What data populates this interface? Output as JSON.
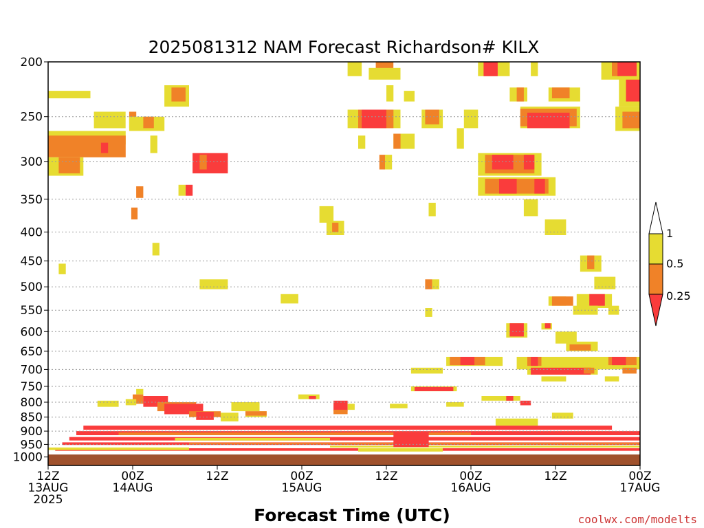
{
  "chart_data": {
    "type": "heatmap",
    "title": "2025081312 NAM Forecast Richardson# KILX",
    "xlabel": "Forecast Time (UTC)",
    "ylabel": "",
    "credit": "coolwx.com/modelts",
    "x_range_hours": [
      0,
      84
    ],
    "x_ticks": [
      {
        "hour": 0,
        "lines": [
          "12Z",
          "13AUG",
          "2025"
        ]
      },
      {
        "hour": 12,
        "lines": [
          "00Z",
          "14AUG"
        ]
      },
      {
        "hour": 24,
        "lines": [
          "12Z"
        ]
      },
      {
        "hour": 36,
        "lines": [
          "00Z",
          "15AUG"
        ]
      },
      {
        "hour": 48,
        "lines": [
          "12Z"
        ]
      },
      {
        "hour": 60,
        "lines": [
          "00Z",
          "16AUG"
        ]
      },
      {
        "hour": 72,
        "lines": [
          "12Z"
        ]
      },
      {
        "hour": 84,
        "lines": [
          "00Z",
          "17AUG"
        ]
      }
    ],
    "y_axis": "pressure (log scale, reversed)",
    "y_range": [
      1000,
      200
    ],
    "y_ticks": [
      200,
      250,
      300,
      350,
      400,
      450,
      500,
      550,
      600,
      650,
      700,
      750,
      800,
      850,
      900,
      950,
      1000
    ],
    "gridlines": true,
    "ground_level_pressure": 990,
    "legend": {
      "position": "right",
      "bins": [
        {
          "label": "1",
          "color": "#ffffff",
          "range": "> 1"
        },
        {
          "label": "0.5",
          "color": "#e6dc32",
          "range": "0.5 - 1"
        },
        {
          "label": "0.25",
          "color": "#f08228",
          "range": "0.25 - 0.5"
        },
        {
          "label": "",
          "color": "#fa3c3c",
          "range": "< 0.25"
        }
      ]
    },
    "colors": {
      "yellow": "#e6dc32",
      "orange": "#f08228",
      "red": "#fa3c3c",
      "ground": "#a0522d"
    },
    "cells": [
      {
        "v": "y",
        "t0": 0,
        "t1": 6,
        "p0": 225,
        "p1": 232
      },
      {
        "v": "y",
        "t0": 0,
        "t1": 11,
        "p0": 265,
        "p1": 280
      },
      {
        "v": "o",
        "t0": 0,
        "t1": 11,
        "p0": 270,
        "p1": 295
      },
      {
        "v": "y",
        "t0": 0,
        "t1": 5,
        "p0": 295,
        "p1": 318
      },
      {
        "v": "o",
        "t0": 1.5,
        "t1": 4.5,
        "p0": 295,
        "p1": 315
      },
      {
        "v": "r",
        "t0": 7.5,
        "t1": 8.5,
        "p0": 278,
        "p1": 290
      },
      {
        "v": "y",
        "t0": 6.5,
        "t1": 11,
        "p0": 245,
        "p1": 262
      },
      {
        "v": "o",
        "t0": 11.5,
        "t1": 12.5,
        "p0": 245,
        "p1": 262
      },
      {
        "v": "y",
        "t0": 11.5,
        "t1": 16.5,
        "p0": 250,
        "p1": 265
      },
      {
        "v": "o",
        "t0": 13.5,
        "t1": 15,
        "p0": 250,
        "p1": 262
      },
      {
        "v": "y",
        "t0": 14.5,
        "t1": 15.5,
        "p0": 270,
        "p1": 290
      },
      {
        "v": "y",
        "t0": 16.5,
        "t1": 20,
        "p0": 220,
        "p1": 240
      },
      {
        "v": "o",
        "t0": 17.5,
        "t1": 19.5,
        "p0": 222,
        "p1": 235
      },
      {
        "v": "r",
        "t0": 20.5,
        "t1": 25.5,
        "p0": 290,
        "p1": 315
      },
      {
        "v": "o",
        "t0": 21.5,
        "t1": 22.5,
        "p0": 292,
        "p1": 310
      },
      {
        "v": "r",
        "t0": 19.5,
        "t1": 20.5,
        "p0": 330,
        "p1": 345
      },
      {
        "v": "y",
        "t0": 18.5,
        "t1": 19.5,
        "p0": 330,
        "p1": 345
      },
      {
        "v": "o",
        "t0": 12.5,
        "t1": 13.5,
        "p0": 332,
        "p1": 348
      },
      {
        "v": "o",
        "t0": 11.8,
        "t1": 12.7,
        "p0": 362,
        "p1": 380
      },
      {
        "v": "y",
        "t0": 14.8,
        "t1": 15.8,
        "p0": 418,
        "p1": 440
      },
      {
        "v": "y",
        "t0": 1.5,
        "t1": 2.5,
        "p0": 455,
        "p1": 475
      },
      {
        "v": "y",
        "t0": 21.5,
        "t1": 25.5,
        "p0": 485,
        "p1": 505
      },
      {
        "v": "y",
        "t0": 33,
        "t1": 35.5,
        "p0": 515,
        "p1": 535
      },
      {
        "v": "y",
        "t0": 38.5,
        "t1": 40.5,
        "p0": 360,
        "p1": 385
      },
      {
        "v": "y",
        "t0": 39.5,
        "t1": 42,
        "p0": 382,
        "p1": 405
      },
      {
        "v": "o",
        "t0": 40.3,
        "t1": 41.2,
        "p0": 385,
        "p1": 400
      },
      {
        "v": "y",
        "t0": 42.5,
        "t1": 44.5,
        "p0": 200,
        "p1": 212
      },
      {
        "v": "o",
        "t0": 46.5,
        "t1": 49,
        "p0": 200,
        "p1": 212
      },
      {
        "v": "y",
        "t0": 45.5,
        "t1": 50,
        "p0": 205,
        "p1": 215
      },
      {
        "v": "y",
        "t0": 48,
        "t1": 49,
        "p0": 220,
        "p1": 235
      },
      {
        "v": "y",
        "t0": 50.5,
        "t1": 52,
        "p0": 225,
        "p1": 235
      },
      {
        "v": "y",
        "t0": 42.5,
        "t1": 50,
        "p0": 243,
        "p1": 262
      },
      {
        "v": "o",
        "t0": 44,
        "t1": 49,
        "p0": 243,
        "p1": 262
      },
      {
        "v": "r",
        "t0": 44.5,
        "t1": 48,
        "p0": 243,
        "p1": 262
      },
      {
        "v": "y",
        "t0": 44,
        "t1": 45,
        "p0": 270,
        "p1": 285
      },
      {
        "v": "y",
        "t0": 49,
        "t1": 52,
        "p0": 268,
        "p1": 285
      },
      {
        "v": "o",
        "t0": 49,
        "t1": 50,
        "p0": 268,
        "p1": 285
      },
      {
        "v": "o",
        "t0": 47,
        "t1": 48,
        "p0": 292,
        "p1": 310
      },
      {
        "v": "y",
        "t0": 47.8,
        "t1": 48.8,
        "p0": 292,
        "p1": 310
      },
      {
        "v": "y",
        "t0": 53,
        "t1": 56,
        "p0": 243,
        "p1": 262
      },
      {
        "v": "o",
        "t0": 53.5,
        "t1": 55.5,
        "p0": 243,
        "p1": 258
      },
      {
        "v": "y",
        "t0": 59,
        "t1": 61,
        "p0": 243,
        "p1": 262
      },
      {
        "v": "y",
        "t0": 58,
        "t1": 59,
        "p0": 262,
        "p1": 285
      },
      {
        "v": "y",
        "t0": 54,
        "t1": 55,
        "p0": 355,
        "p1": 375
      },
      {
        "v": "y",
        "t0": 61,
        "t1": 65.5,
        "p0": 200,
        "p1": 212
      },
      {
        "v": "r",
        "t0": 61.8,
        "t1": 63.8,
        "p0": 200,
        "p1": 212
      },
      {
        "v": "y",
        "t0": 68.5,
        "t1": 69.5,
        "p0": 200,
        "p1": 212
      },
      {
        "v": "y",
        "t0": 65.5,
        "t1": 68,
        "p0": 222,
        "p1": 235
      },
      {
        "v": "o",
        "t0": 66.5,
        "t1": 67.5,
        "p0": 222,
        "p1": 235
      },
      {
        "v": "y",
        "t0": 71,
        "t1": 75.5,
        "p0": 222,
        "p1": 235
      },
      {
        "v": "o",
        "t0": 71.5,
        "t1": 74,
        "p0": 222,
        "p1": 232
      },
      {
        "v": "y",
        "t0": 67,
        "t1": 75.5,
        "p0": 240,
        "p1": 262
      },
      {
        "v": "o",
        "t0": 67,
        "t1": 75,
        "p0": 242,
        "p1": 260
      },
      {
        "v": "r",
        "t0": 68,
        "t1": 74,
        "p0": 246,
        "p1": 262
      },
      {
        "v": "y",
        "t0": 61,
        "t1": 70,
        "p0": 290,
        "p1": 318
      },
      {
        "v": "o",
        "t0": 62,
        "t1": 69,
        "p0": 292,
        "p1": 315
      },
      {
        "v": "r",
        "t0": 63,
        "t1": 66,
        "p0": 292,
        "p1": 310
      },
      {
        "v": "r",
        "t0": 67.5,
        "t1": 69,
        "p0": 292,
        "p1": 310
      },
      {
        "v": "y",
        "t0": 61,
        "t1": 72,
        "p0": 320,
        "p1": 345
      },
      {
        "v": "o",
        "t0": 62,
        "t1": 71,
        "p0": 322,
        "p1": 342
      },
      {
        "v": "r",
        "t0": 64,
        "t1": 66.5,
        "p0": 322,
        "p1": 342
      },
      {
        "v": "r",
        "t0": 69,
        "t1": 70.5,
        "p0": 322,
        "p1": 342
      },
      {
        "v": "y",
        "t0": 67.5,
        "t1": 69.5,
        "p0": 350,
        "p1": 375
      },
      {
        "v": "y",
        "t0": 70.5,
        "t1": 73.5,
        "p0": 380,
        "p1": 405
      },
      {
        "v": "y",
        "t0": 78.5,
        "t1": 84,
        "p0": 200,
        "p1": 215
      },
      {
        "v": "o",
        "t0": 80,
        "t1": 83.5,
        "p0": 200,
        "p1": 212
      },
      {
        "v": "r",
        "t0": 80.8,
        "t1": 83.5,
        "p0": 200,
        "p1": 212
      },
      {
        "v": "y",
        "t0": 81,
        "t1": 84,
        "p0": 212,
        "p1": 240
      },
      {
        "v": "r",
        "t0": 82,
        "t1": 84,
        "p0": 215,
        "p1": 235
      },
      {
        "v": "y",
        "t0": 80.5,
        "t1": 84,
        "p0": 240,
        "p1": 265
      },
      {
        "v": "o",
        "t0": 81.5,
        "t1": 84,
        "p0": 245,
        "p1": 262
      },
      {
        "v": "y",
        "t0": 75.5,
        "t1": 78.5,
        "p0": 440,
        "p1": 470
      },
      {
        "v": "o",
        "t0": 76.5,
        "t1": 77.5,
        "p0": 440,
        "p1": 465
      },
      {
        "v": "y",
        "t0": 77.5,
        "t1": 80.5,
        "p0": 480,
        "p1": 505
      },
      {
        "v": "y",
        "t0": 71,
        "t1": 73.5,
        "p0": 520,
        "p1": 540
      },
      {
        "v": "o",
        "t0": 71.5,
        "t1": 74.5,
        "p0": 520,
        "p1": 540
      },
      {
        "v": "y",
        "t0": 75,
        "t1": 80,
        "p0": 515,
        "p1": 545
      },
      {
        "v": "r",
        "t0": 76.8,
        "t1": 79,
        "p0": 515,
        "p1": 540
      },
      {
        "v": "y",
        "t0": 74.5,
        "t1": 78,
        "p0": 540,
        "p1": 560
      },
      {
        "v": "y",
        "t0": 79.5,
        "t1": 81,
        "p0": 540,
        "p1": 560
      },
      {
        "v": "o",
        "t0": 53.5,
        "t1": 54.5,
        "p0": 485,
        "p1": 505
      },
      {
        "v": "y",
        "t0": 54.5,
        "t1": 55.5,
        "p0": 485,
        "p1": 505
      },
      {
        "v": "y",
        "t0": 53.5,
        "t1": 54.5,
        "p0": 545,
        "p1": 565
      },
      {
        "v": "y",
        "t0": 65,
        "t1": 68,
        "p0": 580,
        "p1": 615
      },
      {
        "v": "r",
        "t0": 65.5,
        "t1": 67.5,
        "p0": 580,
        "p1": 612
      },
      {
        "v": "y",
        "t0": 70,
        "t1": 71.5,
        "p0": 580,
        "p1": 595
      },
      {
        "v": "r",
        "t0": 70.5,
        "t1": 71.3,
        "p0": 580,
        "p1": 592
      },
      {
        "v": "y",
        "t0": 72,
        "t1": 75,
        "p0": 600,
        "p1": 630
      },
      {
        "v": "y",
        "t0": 73.5,
        "t1": 78,
        "p0": 625,
        "p1": 650
      },
      {
        "v": "o",
        "t0": 74,
        "t1": 77,
        "p0": 632,
        "p1": 648
      },
      {
        "v": "y",
        "t0": 56.5,
        "t1": 64.5,
        "p0": 665,
        "p1": 690
      },
      {
        "v": "o",
        "t0": 57,
        "t1": 62,
        "p0": 665,
        "p1": 688
      },
      {
        "v": "r",
        "t0": 58.5,
        "t1": 60.5,
        "p0": 665,
        "p1": 688
      },
      {
        "v": "y",
        "t0": 66.5,
        "t1": 84,
        "p0": 665,
        "p1": 700
      },
      {
        "v": "o",
        "t0": 68,
        "t1": 70,
        "p0": 665,
        "p1": 690
      },
      {
        "v": "r",
        "t0": 68.5,
        "t1": 69.5,
        "p0": 665,
        "p1": 690
      },
      {
        "v": "o",
        "t0": 79.5,
        "t1": 83.5,
        "p0": 665,
        "p1": 688
      },
      {
        "v": "r",
        "t0": 80,
        "t1": 82,
        "p0": 665,
        "p1": 688
      },
      {
        "v": "y",
        "t0": 68,
        "t1": 78,
        "p0": 695,
        "p1": 715
      },
      {
        "v": "r",
        "t0": 68.5,
        "t1": 77,
        "p0": 695,
        "p1": 715
      },
      {
        "v": "o",
        "t0": 76,
        "t1": 77.5,
        "p0": 695,
        "p1": 712
      },
      {
        "v": "o",
        "t0": 81.5,
        "t1": 83.5,
        "p0": 695,
        "p1": 712
      },
      {
        "v": "y",
        "t0": 51.5,
        "t1": 56,
        "p0": 695,
        "p1": 712
      },
      {
        "v": "y",
        "t0": 70,
        "t1": 73.5,
        "p0": 720,
        "p1": 735
      },
      {
        "v": "y",
        "t0": 79,
        "t1": 81,
        "p0": 720,
        "p1": 735
      },
      {
        "v": "y",
        "t0": 51.5,
        "t1": 58,
        "p0": 750,
        "p1": 765
      },
      {
        "v": "r",
        "t0": 52,
        "t1": 57.5,
        "p0": 752,
        "p1": 765
      },
      {
        "v": "y",
        "t0": 12.5,
        "t1": 13.5,
        "p0": 758,
        "p1": 775
      },
      {
        "v": "o",
        "t0": 12,
        "t1": 13.5,
        "p0": 775,
        "p1": 805
      },
      {
        "v": "y",
        "t0": 11,
        "t1": 12.5,
        "p0": 790,
        "p1": 810
      },
      {
        "v": "r",
        "t0": 13.5,
        "t1": 17,
        "p0": 780,
        "p1": 815
      },
      {
        "v": "y",
        "t0": 7,
        "t1": 10,
        "p0": 795,
        "p1": 815
      },
      {
        "v": "o",
        "t0": 15.5,
        "t1": 21,
        "p0": 800,
        "p1": 830
      },
      {
        "v": "r",
        "t0": 16.5,
        "t1": 22,
        "p0": 805,
        "p1": 840
      },
      {
        "v": "o",
        "t0": 20,
        "t1": 24.5,
        "p0": 830,
        "p1": 850
      },
      {
        "v": "r",
        "t0": 21,
        "t1": 23.5,
        "p0": 832,
        "p1": 860
      },
      {
        "v": "y",
        "t0": 24.5,
        "t1": 27,
        "p0": 835,
        "p1": 865
      },
      {
        "v": "y",
        "t0": 26,
        "t1": 30,
        "p0": 800,
        "p1": 830
      },
      {
        "v": "y",
        "t0": 28,
        "t1": 31,
        "p0": 830,
        "p1": 850
      },
      {
        "v": "o",
        "t0": 28,
        "t1": 31,
        "p0": 830,
        "p1": 845
      },
      {
        "v": "y",
        "t0": 35.5,
        "t1": 38.5,
        "p0": 775,
        "p1": 790
      },
      {
        "v": "r",
        "t0": 37,
        "t1": 38,
        "p0": 780,
        "p1": 790
      },
      {
        "v": "r",
        "t0": 40.5,
        "t1": 42.5,
        "p0": 795,
        "p1": 830
      },
      {
        "v": "o",
        "t0": 40.5,
        "t1": 42.5,
        "p0": 825,
        "p1": 840
      },
      {
        "v": "y",
        "t0": 42.5,
        "t1": 43.5,
        "p0": 805,
        "p1": 825
      },
      {
        "v": "y",
        "t0": 48.5,
        "t1": 51,
        "p0": 805,
        "p1": 820
      },
      {
        "v": "y",
        "t0": 56.5,
        "t1": 59,
        "p0": 800,
        "p1": 815
      },
      {
        "v": "y",
        "t0": 61.5,
        "t1": 67,
        "p0": 780,
        "p1": 795
      },
      {
        "v": "r",
        "t0": 65,
        "t1": 66,
        "p0": 780,
        "p1": 795
      },
      {
        "v": "r",
        "t0": 67,
        "t1": 68.5,
        "p0": 795,
        "p1": 810
      },
      {
        "v": "y",
        "t0": 63.5,
        "t1": 69.5,
        "p0": 855,
        "p1": 880
      },
      {
        "v": "y",
        "t0": 71.5,
        "t1": 74.5,
        "p0": 835,
        "p1": 855
      },
      {
        "v": "r",
        "t0": 5,
        "t1": 80,
        "p0": 880,
        "p1": 895
      },
      {
        "v": "r",
        "t0": 4,
        "t1": 84,
        "p0": 900,
        "p1": 915
      },
      {
        "v": "o",
        "t0": 10,
        "t1": 60,
        "p0": 905,
        "p1": 915
      },
      {
        "v": "r",
        "t0": 3,
        "t1": 84,
        "p0": 922,
        "p1": 935
      },
      {
        "v": "y",
        "t0": 18,
        "t1": 40,
        "p0": 925,
        "p1": 935
      },
      {
        "v": "r",
        "t0": 2,
        "t1": 84,
        "p0": 942,
        "p1": 952
      },
      {
        "v": "o",
        "t0": 20,
        "t1": 84,
        "p0": 943,
        "p1": 950
      },
      {
        "v": "y",
        "t0": 40,
        "t1": 84,
        "p0": 955,
        "p1": 962
      },
      {
        "v": "r",
        "t0": 1,
        "t1": 84,
        "p0": 965,
        "p1": 975
      },
      {
        "v": "y",
        "t0": 0,
        "t1": 20,
        "p0": 962,
        "p1": 972
      },
      {
        "v": "r",
        "t0": 49,
        "t1": 54,
        "p0": 905,
        "p1": 960
      },
      {
        "v": "y",
        "t0": 44,
        "t1": 56,
        "p0": 965,
        "p1": 978
      }
    ]
  }
}
